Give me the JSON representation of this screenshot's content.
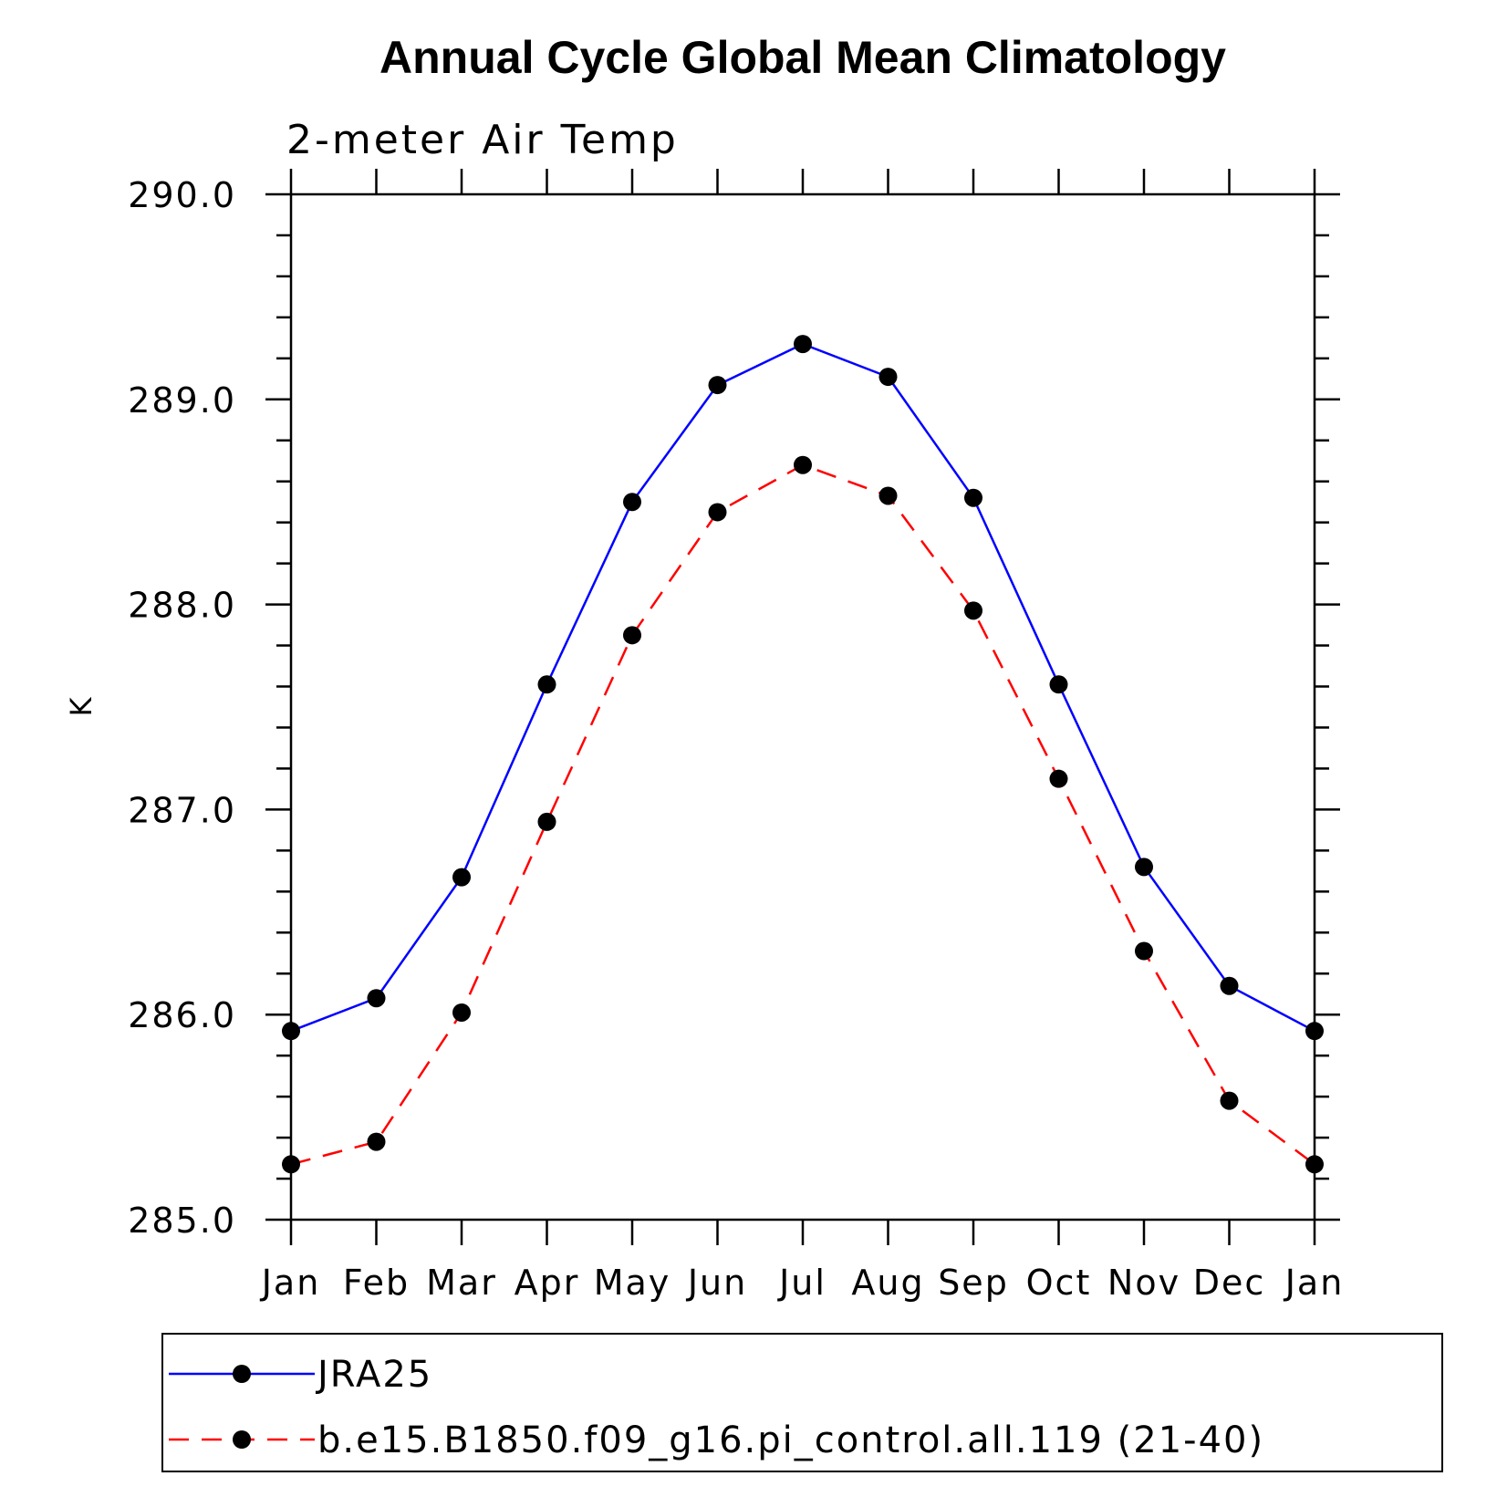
{
  "chart_data": {
    "type": "line",
    "title": "Annual Cycle Global Mean Climatology",
    "subtitle": "2-meter Air Temp",
    "xlabel": "",
    "ylabel": "K",
    "categories": [
      "Jan",
      "Feb",
      "Mar",
      "Apr",
      "May",
      "Jun",
      "Jul",
      "Aug",
      "Sep",
      "Oct",
      "Nov",
      "Dec",
      "Jan"
    ],
    "y_tick_labels": [
      "285.0",
      "286.0",
      "287.0",
      "288.0",
      "289.0",
      "290.0"
    ],
    "ylim": [
      285.0,
      290.0
    ],
    "y_major_step": 1.0,
    "y_minor_step": 0.2,
    "grid": false,
    "legend_position": "bottom",
    "series": [
      {
        "name": "JRA25",
        "color": "#0000ff",
        "line_style": "solid",
        "marker": "filled-circle",
        "values": [
          285.92,
          286.08,
          286.67,
          287.61,
          288.5,
          289.07,
          289.27,
          289.11,
          288.52,
          287.61,
          286.72,
          286.14,
          285.92
        ]
      },
      {
        "name": "b.e15.B1850.f09_g16.pi_control.all.119 (21-40)",
        "color": "#ff0000",
        "line_style": "dashed",
        "marker": "filled-circle",
        "values": [
          285.27,
          285.38,
          286.01,
          286.94,
          287.85,
          288.45,
          288.68,
          288.53,
          287.97,
          287.15,
          286.31,
          285.58,
          285.27
        ]
      }
    ]
  }
}
